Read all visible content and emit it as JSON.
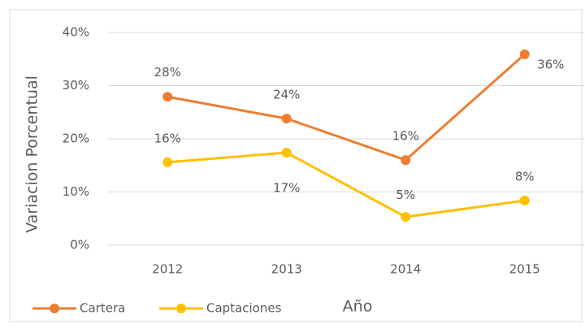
{
  "chart_data": {
    "type": "line",
    "y_label": "Variacion Porcentual",
    "x_label": "Año",
    "categories": [
      "2012",
      "2013",
      "2014",
      "2015"
    ],
    "series": [
      {
        "name": "Cartera",
        "color": "#ed7d31",
        "values": [
          27.9,
          23.8,
          16.0,
          35.9
        ],
        "value_labels": [
          "28%",
          "24%",
          "16%",
          "36%"
        ]
      },
      {
        "name": "Captaciones",
        "color": "#ffc000",
        "values": [
          15.6,
          17.4,
          5.3,
          8.4
        ],
        "value_labels": [
          "16%",
          "17%",
          "5%",
          "8%"
        ]
      }
    ],
    "ylim": [
      0,
      40
    ],
    "yticks": [
      {
        "value": 0,
        "label": "0%"
      },
      {
        "value": 10,
        "label": "10%"
      },
      {
        "value": 20,
        "label": "20%"
      },
      {
        "value": 30,
        "label": "30%"
      },
      {
        "value": 40,
        "label": "40%"
      }
    ],
    "grid": true,
    "legend": "bottom-left"
  }
}
